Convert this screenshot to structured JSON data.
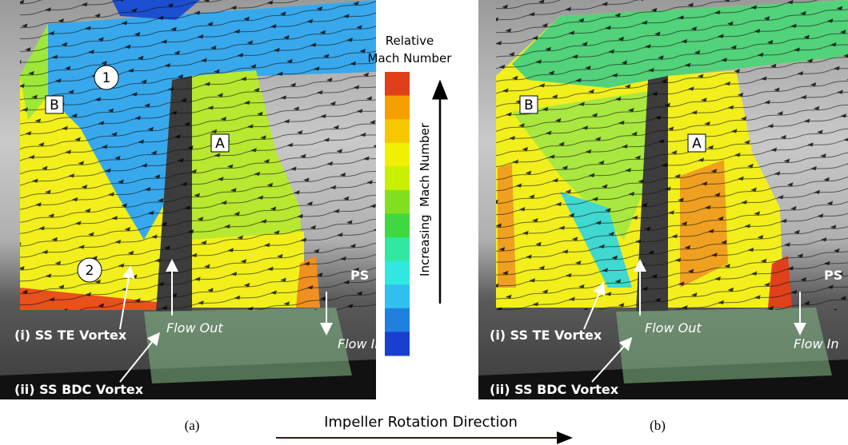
{
  "panel_a": {
    "caption": "(a)",
    "markers": [
      "1",
      "B",
      "A",
      "2"
    ],
    "ps": "PS",
    "flow_out": "Flow Out",
    "flow_in": "Flow In",
    "vortex_te": "(i) SS TE Vortex",
    "vortex_bdc": "(ii) SS BDC Vortex"
  },
  "panel_b": {
    "caption": "(b)",
    "markers": [
      "B",
      "A"
    ],
    "ps": "PS",
    "flow_out": "Flow Out",
    "flow_in": "Flow In",
    "vortex_te": "(i) SS TE Vortex",
    "vortex_bdc": "(ii) SS BDC Vortex"
  },
  "colorbar": {
    "title": [
      "Relative",
      "Mach Number"
    ],
    "axis_label": "Increasing  Mach Number"
  },
  "footer": {
    "direction": "Impeller Rotation Direction"
  }
}
